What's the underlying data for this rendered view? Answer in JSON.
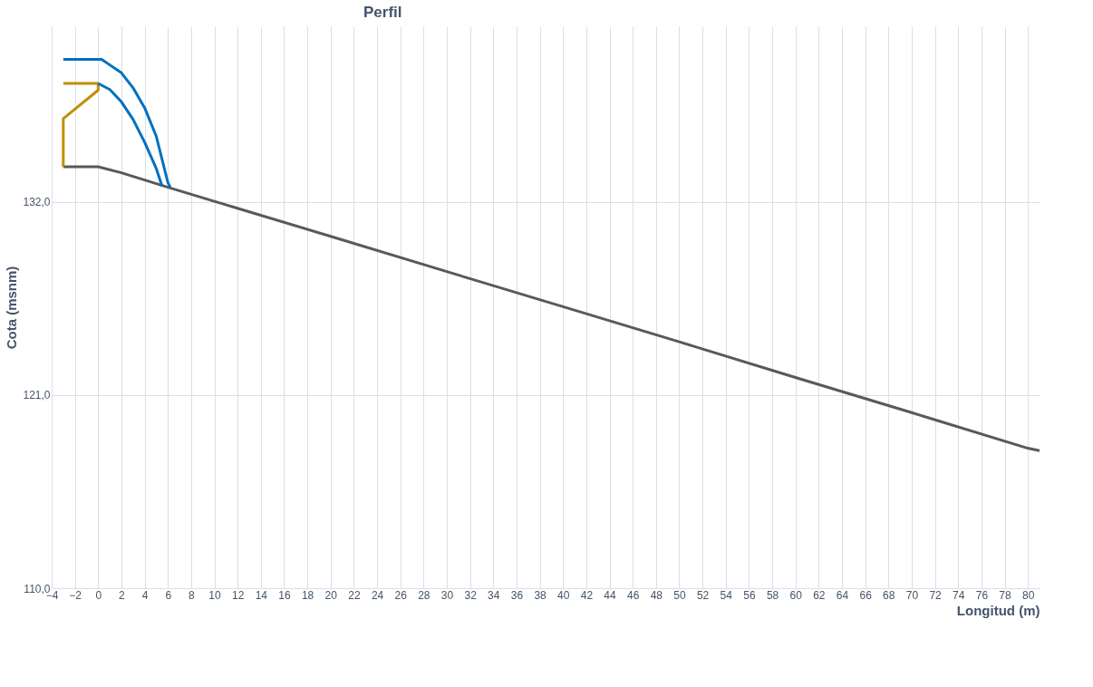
{
  "chart_data": {
    "type": "line",
    "title": "Perfil",
    "xlabel": "Longitud (m)",
    "ylabel": "Cota (msnm)",
    "xlim": [
      -4,
      81
    ],
    "xticks": [
      -4,
      -2,
      0,
      2,
      4,
      6,
      8,
      10,
      12,
      14,
      16,
      18,
      20,
      22,
      24,
      26,
      28,
      30,
      32,
      34,
      36,
      38,
      40,
      42,
      44,
      46,
      48,
      50,
      52,
      54,
      56,
      58,
      60,
      62,
      64,
      66,
      68,
      70,
      72,
      74,
      76,
      78,
      80
    ],
    "ylim": [
      110,
      142
    ],
    "yticks": [
      {
        "value": 110,
        "label": "110,0"
      },
      {
        "value": 121,
        "label": "121,0"
      },
      {
        "value": 132,
        "label": "132,0"
      }
    ],
    "grid": true,
    "marker": "none",
    "line_style": "solid",
    "series": [
      {
        "color": "#595959",
        "x": [
          -3,
          0,
          2,
          6,
          10,
          20,
          30,
          40,
          50,
          60,
          70,
          80,
          81
        ],
        "values": [
          134.0,
          134.0,
          133.66,
          132.83,
          132.03,
          130.04,
          128.03,
          126.03,
          124.03,
          122.0,
          120.0,
          117.97,
          117.83
        ]
      },
      {
        "color": "#bf9000",
        "x": [
          -3,
          -3,
          0,
          0,
          -3
        ],
        "values": [
          134.0,
          136.74,
          138.36,
          138.75,
          138.75
        ]
      },
      {
        "color": "#0070c0",
        "x": [
          -3,
          0.3,
          1,
          2,
          3,
          4,
          5,
          6,
          6.2
        ],
        "values": [
          140.12,
          140.12,
          139.8,
          139.35,
          138.5,
          137.36,
          135.74,
          133.1,
          132.83
        ]
      },
      {
        "color": "#0070c0",
        "x": [
          0,
          1,
          2,
          3,
          4,
          5,
          5.5
        ],
        "values": [
          138.75,
          138.4,
          137.7,
          136.7,
          135.4,
          133.9,
          132.9
        ]
      }
    ]
  }
}
